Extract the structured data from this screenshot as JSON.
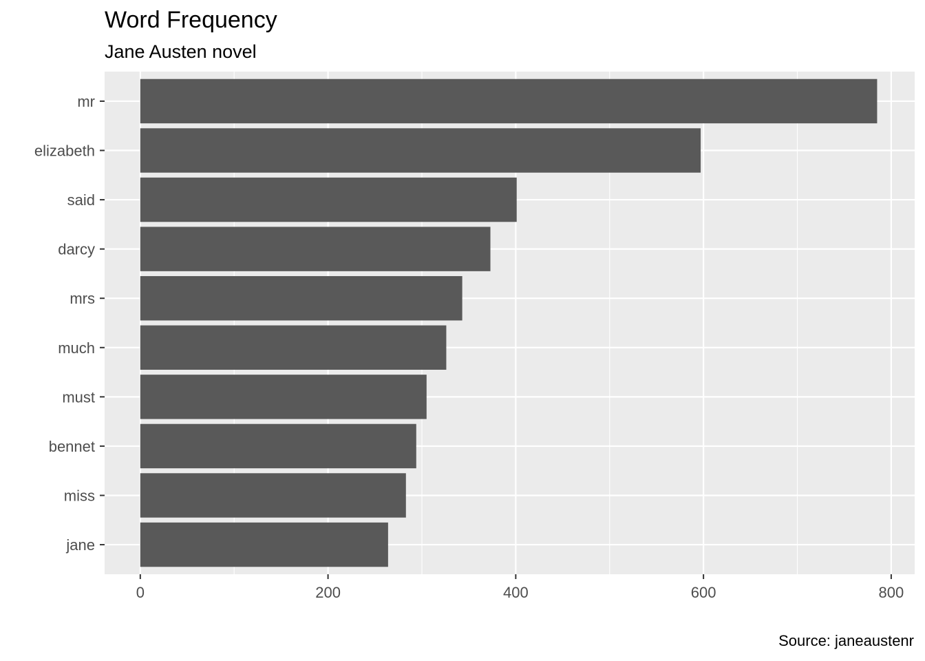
{
  "chart_data": {
    "type": "bar",
    "orientation": "horizontal",
    "title": "Word Frequency",
    "subtitle": "Jane Austen novel",
    "caption": "Source: janeaustenr",
    "xlabel": "",
    "ylabel": "",
    "categories": [
      "mr",
      "elizabeth",
      "said",
      "darcy",
      "mrs",
      "much",
      "must",
      "bennet",
      "miss",
      "jane"
    ],
    "values": [
      785,
      597,
      401,
      373,
      343,
      326,
      305,
      294,
      283,
      264
    ],
    "xlim": [
      -38,
      825
    ],
    "x_ticks": [
      0,
      200,
      400,
      600,
      800
    ],
    "x_tick_labels": [
      "0",
      "200",
      "400",
      "600",
      "800"
    ],
    "grid": true,
    "legend": "none",
    "colors": {
      "bar": "#595959",
      "panel_background": "#ebebeb",
      "grid_line": "#ffffff",
      "axis_text": "#4d4d4d",
      "tick": "#333333"
    }
  }
}
